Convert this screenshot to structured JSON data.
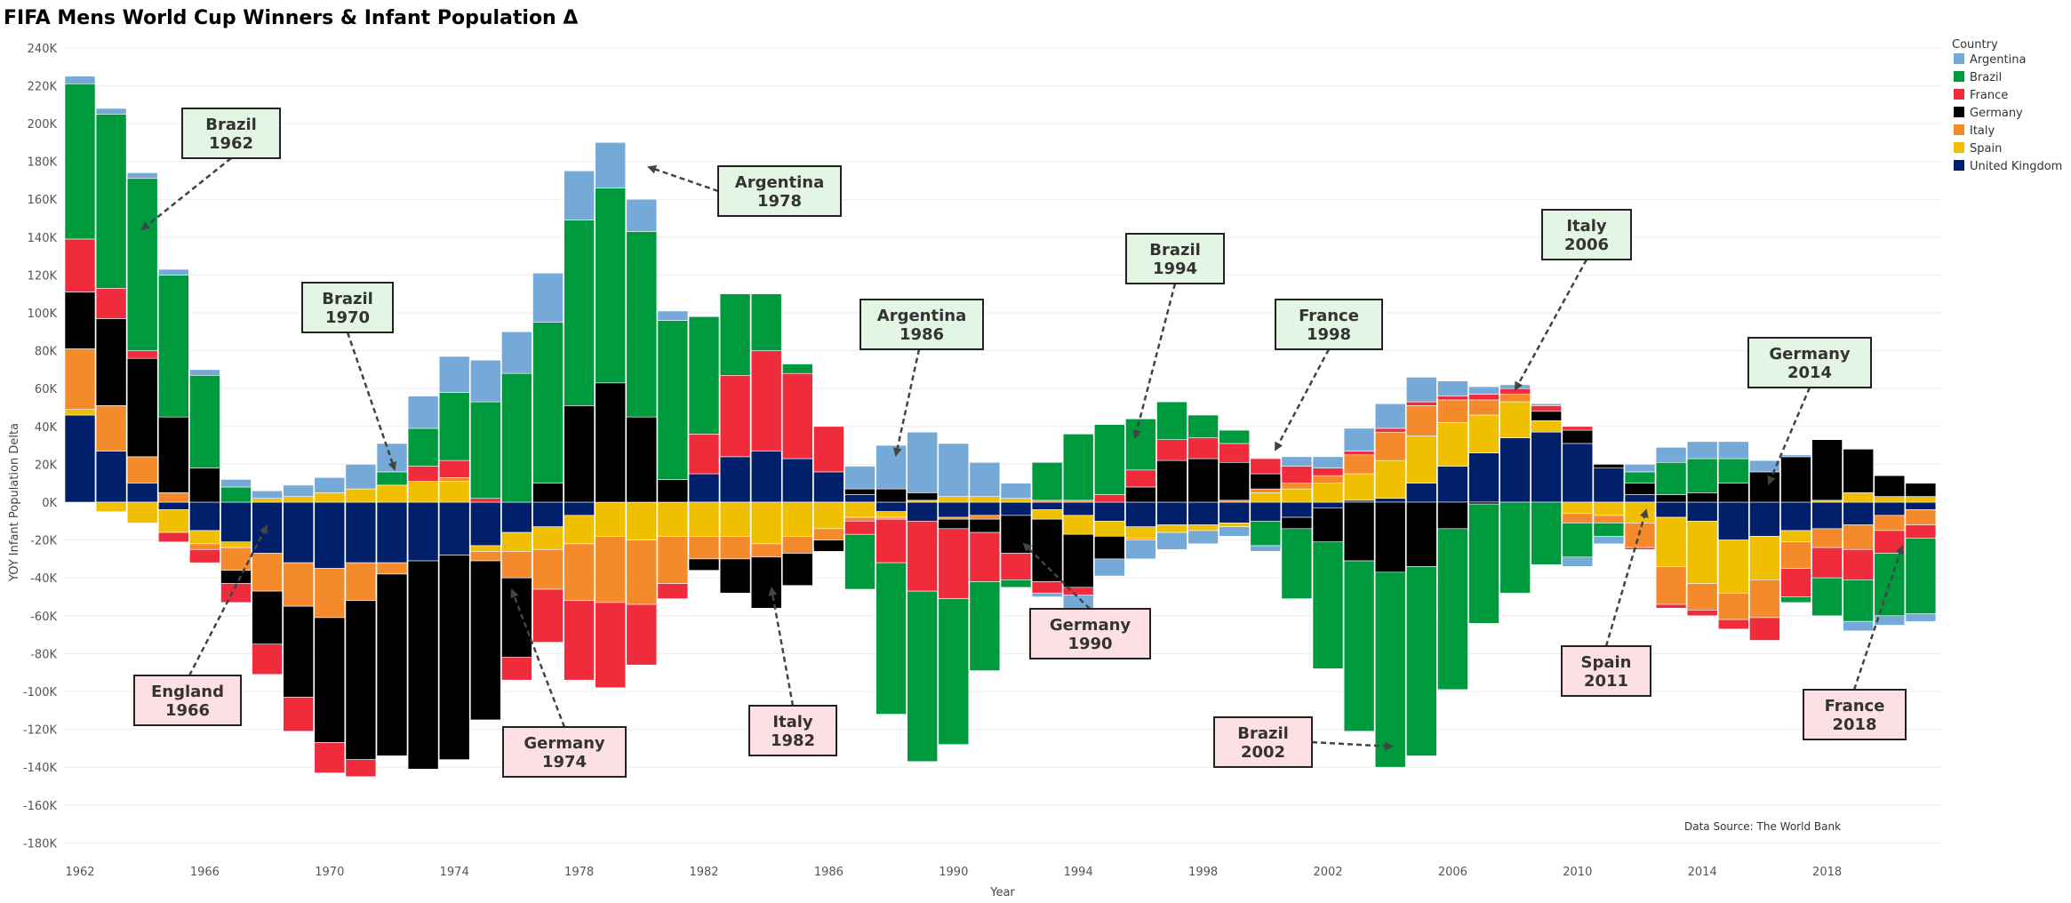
{
  "chart_data": {
    "type": "bar",
    "stacked": true,
    "title": "FIFA Mens World Cup Winners & Infant Population Δ",
    "xlabel": "Year",
    "ylabel": "YOY Infant Population Delta",
    "source": "Data Source: The World Bank",
    "legend_title": "Country",
    "legend_position": "top-right",
    "ylim": [
      -185000,
      245000
    ],
    "xlim": [
      1961.0,
      2021.5
    ],
    "y_ticks": [
      240000,
      220000,
      200000,
      180000,
      160000,
      140000,
      120000,
      100000,
      80000,
      60000,
      40000,
      20000,
      0,
      -20000,
      -40000,
      -60000,
      -80000,
      -100000,
      -120000,
      -140000,
      -160000,
      -180000
    ],
    "y_tick_labels": [
      "240K",
      "220K",
      "200K",
      "180K",
      "160K",
      "140K",
      "120K",
      "100K",
      "80K",
      "60K",
      "40K",
      "20K",
      "0K",
      "-20K",
      "-40K",
      "-60K",
      "-80K",
      "-100K",
      "-120K",
      "-140K",
      "-160K",
      "-180K"
    ],
    "x_ticks": [
      1962,
      1966,
      1970,
      1974,
      1978,
      1982,
      1986,
      1990,
      1994,
      1998,
      2002,
      2006,
      2010,
      2014,
      2018
    ],
    "grid": true,
    "x": [
      1962,
      1963,
      1964,
      1965,
      1966,
      1967,
      1968,
      1969,
      1970,
      1971,
      1972,
      1973,
      1974,
      1975,
      1976,
      1977,
      1978,
      1979,
      1980,
      1981,
      1982,
      1983,
      1984,
      1985,
      1986,
      1987,
      1988,
      1989,
      1990,
      1991,
      1992,
      1993,
      1994,
      1995,
      1996,
      1997,
      1998,
      1999,
      2000,
      2001,
      2002,
      2003,
      2004,
      2005,
      2006,
      2007,
      2008,
      2009,
      2010,
      2011,
      2012,
      2013,
      2014,
      2015,
      2016,
      2017,
      2018,
      2019,
      2020,
      2021
    ],
    "stack_order": [
      "United Kingdom",
      "Spain",
      "Italy",
      "Germany",
      "France",
      "Brazil",
      "Argentina"
    ],
    "series": [
      {
        "name": "Argentina",
        "color": "#74a9d8",
        "values": [
          4000,
          3000,
          3000,
          3000,
          3000,
          4000,
          4000,
          6000,
          8000,
          13000,
          15000,
          17000,
          19000,
          22000,
          22000,
          26000,
          26000,
          24000,
          17000,
          5000,
          0,
          0,
          0,
          0,
          0,
          12000,
          23000,
          32000,
          28000,
          18000,
          8000,
          -2000,
          -8000,
          -9000,
          -10000,
          -9000,
          -7000,
          -5000,
          -3000,
          5000,
          6000,
          12000,
          13000,
          13000,
          8000,
          4000,
          2000,
          1000,
          -5000,
          -4000,
          4000,
          8000,
          9000,
          9000,
          6000,
          1000,
          0,
          -5000,
          -5000,
          -4000
        ]
      },
      {
        "name": "Brazil",
        "color": "#009a3e",
        "values": [
          82000,
          92000,
          91000,
          75000,
          49000,
          8000,
          0,
          0,
          0,
          0,
          7000,
          20000,
          36000,
          51000,
          68000,
          85000,
          98000,
          103000,
          98000,
          84000,
          62000,
          43000,
          30000,
          5000,
          0,
          -29000,
          -80000,
          -90000,
          -77000,
          -47000,
          -4000,
          20000,
          35000,
          37000,
          27000,
          20000,
          12000,
          7000,
          -13000,
          -37000,
          -67000,
          -90000,
          -103000,
          -100000,
          -85000,
          -63000,
          -48000,
          -33000,
          -18000,
          -7000,
          6000,
          17000,
          18000,
          13000,
          0,
          -3000,
          -20000,
          -22000,
          -33000,
          -40000
        ]
      },
      {
        "name": "France",
        "color": "#ef2b3c",
        "values": [
          28000,
          16000,
          4000,
          -5000,
          -7000,
          -10000,
          -16000,
          -18000,
          -16000,
          -9000,
          0,
          8000,
          9000,
          2000,
          -12000,
          -28000,
          -42000,
          -45000,
          -32000,
          -8000,
          21000,
          43000,
          53000,
          45000,
          24000,
          -7000,
          -23000,
          -37000,
          -37000,
          -26000,
          -14000,
          -6000,
          -4000,
          4000,
          9000,
          11000,
          11000,
          10000,
          8000,
          9000,
          4000,
          2000,
          2000,
          2000,
          2000,
          3000,
          3000,
          3000,
          2000,
          0,
          -1000,
          -2000,
          -3000,
          -5000,
          -12000,
          -15000,
          -16000,
          -16000,
          -12000,
          -7000
        ]
      },
      {
        "name": "Germany",
        "color": "#000000",
        "values": [
          30000,
          46000,
          52000,
          40000,
          18000,
          -7000,
          -28000,
          -48000,
          -66000,
          -84000,
          -96000,
          -110000,
          -108000,
          -84000,
          -42000,
          10000,
          51000,
          63000,
          45000,
          12000,
          -6000,
          -18000,
          -27000,
          -17000,
          -6000,
          3000,
          7000,
          4000,
          -5000,
          -7000,
          -20000,
          -33000,
          -28000,
          -12000,
          8000,
          22000,
          23000,
          20000,
          8000,
          -6000,
          -18000,
          -31000,
          -37000,
          -34000,
          -14000,
          -1000,
          0,
          5000,
          7000,
          2000,
          6000,
          4000,
          5000,
          10000,
          16000,
          24000,
          32000,
          23000,
          11000,
          7000
        ]
      },
      {
        "name": "Italy",
        "color": "#f58a2d",
        "values": [
          32000,
          24000,
          14000,
          5000,
          -3000,
          -12000,
          -20000,
          -23000,
          -26000,
          -20000,
          -6000,
          0,
          2000,
          -5000,
          -14000,
          -21000,
          -30000,
          -35000,
          -34000,
          -25000,
          -12000,
          -12000,
          -7000,
          -9000,
          -6000,
          -2000,
          -1000,
          0,
          -1000,
          -2000,
          0,
          1000,
          1000,
          0,
          -1000,
          0,
          0,
          1000,
          2000,
          3000,
          4000,
          10000,
          15000,
          16000,
          12000,
          8000,
          4000,
          0,
          -5000,
          -4000,
          -13000,
          -20000,
          -14000,
          -14000,
          -20000,
          -14000,
          -10000,
          -13000,
          -8000,
          -8000
        ]
      },
      {
        "name": "Spain",
        "color": "#f0c000",
        "values": [
          3000,
          -5000,
          -11000,
          -12000,
          -7000,
          -3000,
          2000,
          3000,
          5000,
          7000,
          9000,
          11000,
          11000,
          -3000,
          -10000,
          -12000,
          -15000,
          -18000,
          -20000,
          -18000,
          -18000,
          -18000,
          -22000,
          -18000,
          -14000,
          -8000,
          -3000,
          1000,
          3000,
          3000,
          2000,
          -5000,
          -10000,
          -8000,
          -6000,
          -4000,
          -3000,
          -2000,
          5000,
          7000,
          10000,
          14000,
          20000,
          25000,
          23000,
          20000,
          19000,
          6000,
          -6000,
          -7000,
          -11000,
          -26000,
          -33000,
          -28000,
          -23000,
          -6000,
          1000,
          5000,
          3000,
          3000
        ]
      },
      {
        "name": "United Kingdom",
        "color": "#00206b",
        "values": [
          46000,
          27000,
          10000,
          -4000,
          -15000,
          -21000,
          -27000,
          -32000,
          -35000,
          -32000,
          -32000,
          -31000,
          -28000,
          -23000,
          -16000,
          -13000,
          -7000,
          0,
          0,
          0,
          15000,
          24000,
          27000,
          23000,
          16000,
          4000,
          -5000,
          -10000,
          -8000,
          -7000,
          -7000,
          -4000,
          -7000,
          -10000,
          -13000,
          -12000,
          -12000,
          -11000,
          -10000,
          -8000,
          -3000,
          1000,
          2000,
          10000,
          19000,
          26000,
          34000,
          37000,
          31000,
          18000,
          4000,
          -8000,
          -10000,
          -20000,
          -18000,
          -15000,
          -14000,
          -12000,
          -7000,
          -4000
        ]
      }
    ],
    "annotations": [
      {
        "line1": "Brazil",
        "line2": "1962",
        "type": "win"
      },
      {
        "line1": "England",
        "line2": "1966",
        "type": "loss"
      },
      {
        "line1": "Brazil",
        "line2": "1970",
        "type": "win"
      },
      {
        "line1": "Germany",
        "line2": "1974",
        "type": "loss"
      },
      {
        "line1": "Argentina",
        "line2": "1978",
        "type": "win"
      },
      {
        "line1": "Italy",
        "line2": "1982",
        "type": "loss"
      },
      {
        "line1": "Argentina",
        "line2": "1986",
        "type": "win"
      },
      {
        "line1": "Germany",
        "line2": "1990",
        "type": "loss"
      },
      {
        "line1": "Brazil",
        "line2": "1994",
        "type": "win"
      },
      {
        "line1": "France",
        "line2": "1998",
        "type": "win"
      },
      {
        "line1": "Brazil",
        "line2": "2002",
        "type": "loss"
      },
      {
        "line1": "Italy",
        "line2": "2006",
        "type": "win"
      },
      {
        "line1": "Spain",
        "line2": "2011",
        "type": "loss"
      },
      {
        "line1": "Germany",
        "line2": "2014",
        "type": "win"
      },
      {
        "line1": "France",
        "line2": "2018",
        "type": "loss"
      }
    ],
    "annotation_colors": {
      "win": "#e3f5e3",
      "loss": "#fde0e3"
    }
  }
}
